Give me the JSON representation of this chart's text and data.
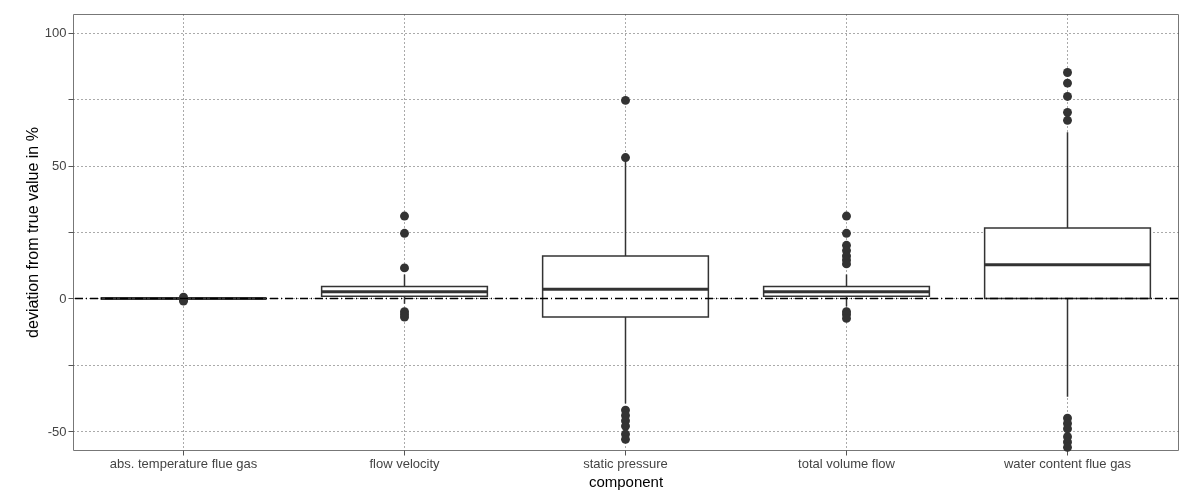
{
  "chart_data": {
    "type": "box",
    "xlabel": "component",
    "ylabel": "deviation from true value in %",
    "categories": [
      "abs. temperature flue gas",
      "flow velocity",
      "static pressure",
      "total volume flow",
      "water content flue gas"
    ],
    "boxes": [
      {
        "low": 0,
        "q1": 0,
        "median": 0,
        "q3": 0,
        "high": 0,
        "outliers": [
          0.5,
          -0.5,
          -1
        ]
      },
      {
        "low": -2,
        "q1": 0.8,
        "median": 2.5,
        "q3": 4.5,
        "high": 9,
        "outliers": [
          31,
          24.5,
          11.5,
          -5,
          -6,
          -7
        ]
      },
      {
        "low": -39.5,
        "q1": -7,
        "median": 3.5,
        "q3": 16,
        "high": 52.5,
        "outliers": [
          74.5,
          53,
          -42,
          -44,
          -46,
          -48,
          -51,
          -53
        ]
      },
      {
        "low": -3,
        "q1": 0.8,
        "median": 2.5,
        "q3": 4.5,
        "high": 9,
        "outliers": [
          31,
          24.5,
          20,
          18,
          16,
          14.5,
          13,
          -5,
          -6,
          -7.5
        ]
      },
      {
        "low": -37,
        "q1": 0,
        "median": 12.7,
        "q3": 26.5,
        "high": 62.5,
        "outliers": [
          85,
          81,
          76,
          70,
          67,
          -45,
          -47,
          -49,
          -52,
          -54,
          -56
        ]
      }
    ],
    "color": "#333333",
    "ylim": [
      -57,
      107
    ],
    "yticks": [
      -50,
      {
        "value": -25,
        "label": null
      },
      0,
      {
        "value": 25,
        "label": null
      },
      50,
      {
        "value": 75,
        "label": null
      },
      100
    ],
    "grid": true,
    "line_style": "dotted",
    "ref_lines": [
      {
        "axis": "y",
        "value": 0,
        "line_style": "dashdot"
      }
    ]
  }
}
